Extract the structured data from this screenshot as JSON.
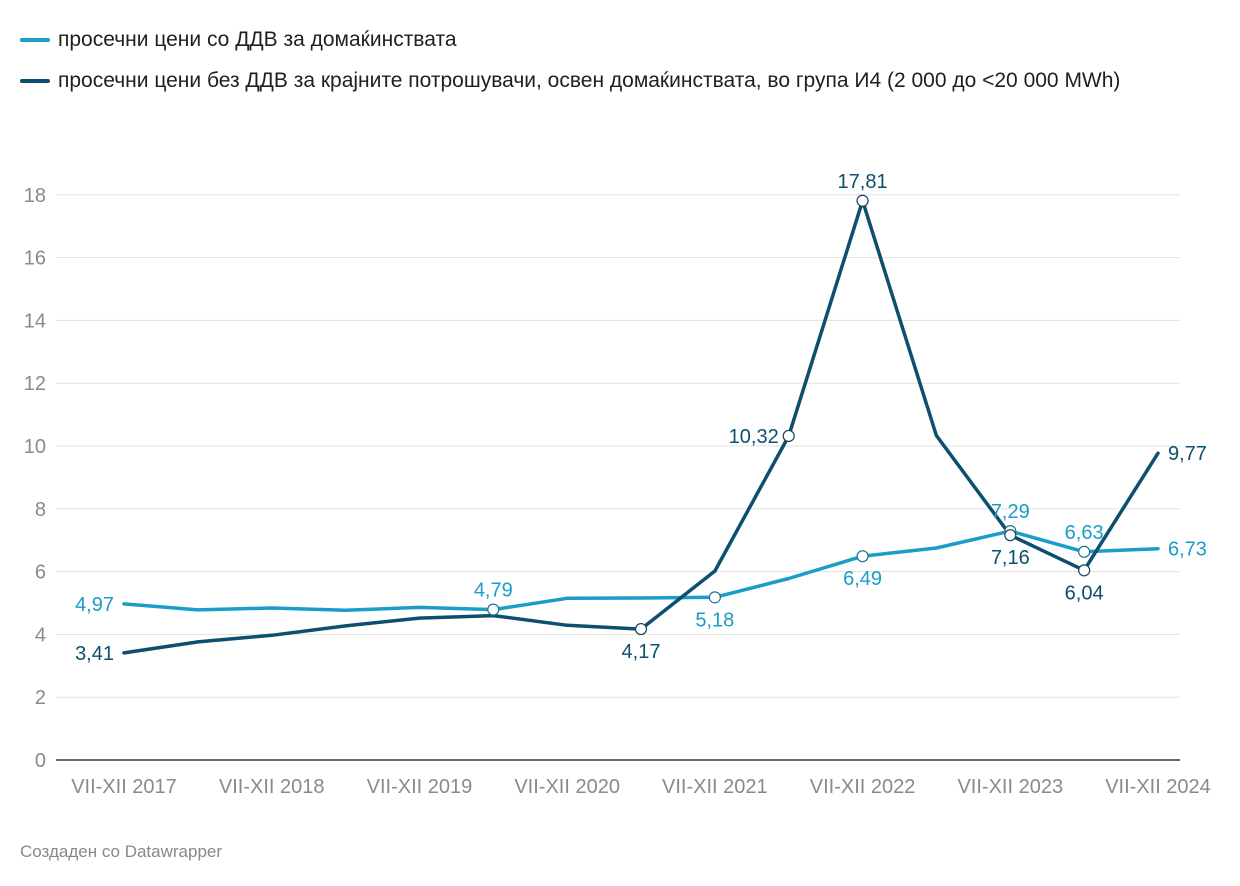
{
  "legend": {
    "households": "просечни цени со ДДВ за домаќинствата",
    "non_households": "просечни цени без ДДВ за крајните потрошувачи, освен домаќинствата, во група И4 (2 000 до <20 000 MWh)"
  },
  "credit": "Создаден со Datawrapper",
  "colors": {
    "households": "#1a9dc8",
    "non_households": "#0d4f6f",
    "grid": "#e0e0e0",
    "axis": "#333333",
    "tick": "#8a8a8a"
  },
  "chart_data": {
    "type": "line",
    "x": [
      0,
      0.5,
      1,
      1.5,
      2,
      2.5,
      3,
      3.5,
      4,
      4.5,
      5,
      5.5,
      6,
      6.5,
      7
    ],
    "x_tick_labels": [
      "VII-XII 2017",
      "VII-XII 2018",
      "VII-XII 2019",
      "VII-XII 2020",
      "VII-XII 2021",
      "VII-XII 2022",
      "VII-XII 2023",
      "VII-XII 2024"
    ],
    "ylim": [
      0,
      18.5
    ],
    "yticks": [
      0,
      2,
      4,
      6,
      8,
      10,
      12,
      14,
      16,
      18
    ],
    "grid": true,
    "legend_position": "top-left",
    "series": [
      {
        "key": "households",
        "name": "просечни цени со ДДВ за домаќинствата",
        "values": [
          4.97,
          4.78,
          4.84,
          4.77,
          4.86,
          4.79,
          5.15,
          5.16,
          5.18,
          5.78,
          6.49,
          6.75,
          7.29,
          6.63,
          6.73
        ],
        "labels": [
          {
            "i": 0,
            "text": "4,97",
            "pos": "left"
          },
          {
            "i": 5,
            "text": "4,79",
            "pos": "above",
            "marker": true
          },
          {
            "i": 8,
            "text": "5,18",
            "pos": "below",
            "marker": true
          },
          {
            "i": 10,
            "text": "6,49",
            "pos": "below",
            "marker": true
          },
          {
            "i": 12,
            "text": "7,29",
            "pos": "above",
            "marker": true
          },
          {
            "i": 13,
            "text": "6,63",
            "pos": "above",
            "marker": true
          },
          {
            "i": 14,
            "text": "6,73",
            "pos": "right"
          }
        ]
      },
      {
        "key": "non_households",
        "name": "просечни цени без ДДВ за крајните потрошувачи, освен домаќинствата, во група И4 (2 000 до <20 000 MWh)",
        "values": [
          3.41,
          3.76,
          3.97,
          4.27,
          4.52,
          4.6,
          4.29,
          4.17,
          6.02,
          10.32,
          17.81,
          10.33,
          7.16,
          6.04,
          9.77
        ],
        "labels": [
          {
            "i": 0,
            "text": "3,41",
            "pos": "left"
          },
          {
            "i": 7,
            "text": "4,17",
            "pos": "below",
            "marker": true
          },
          {
            "i": 9,
            "text": "10,32",
            "pos": "left",
            "marker": true
          },
          {
            "i": 10,
            "text": "17,81",
            "pos": "above",
            "marker": true
          },
          {
            "i": 12,
            "text": "7,16",
            "pos": "below",
            "marker": true
          },
          {
            "i": 13,
            "text": "6,04",
            "pos": "below",
            "marker": true
          },
          {
            "i": 14,
            "text": "9,77",
            "pos": "right"
          }
        ]
      }
    ]
  }
}
